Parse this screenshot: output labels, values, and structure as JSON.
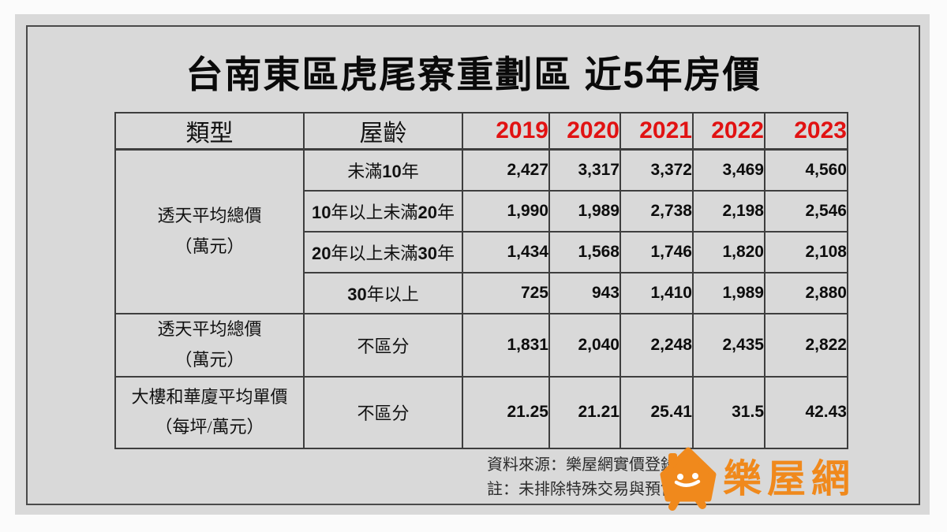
{
  "title": "台南東區虎尾寮重劃區 近5年房價",
  "table": {
    "header": {
      "type": "類型",
      "age": "屋齡",
      "years": [
        "2019",
        "2020",
        "2021",
        "2022",
        "2023"
      ]
    },
    "groups": [
      {
        "type_line1": "透天平均總價",
        "type_line2": "（萬元）",
        "rows": [
          {
            "age": "未滿10年",
            "values": [
              "2,427",
              "3,317",
              "3,372",
              "3,469",
              "4,560"
            ]
          },
          {
            "age": "10年以上未滿20年",
            "values": [
              "1,990",
              "1,989",
              "2,738",
              "2,198",
              "2,546"
            ]
          },
          {
            "age": "20年以上未滿30年",
            "values": [
              "1,434",
              "1,568",
              "1,746",
              "1,820",
              "2,108"
            ]
          },
          {
            "age": "30年以上",
            "values": [
              "725",
              "943",
              "1,410",
              "1,989",
              "2,880"
            ]
          }
        ]
      },
      {
        "type_line1": "透天平均總價",
        "type_line2": "（萬元）",
        "rows": [
          {
            "age": "不區分",
            "values": [
              "1,831",
              "2,040",
              "2,248",
              "2,435",
              "2,822"
            ]
          }
        ]
      },
      {
        "type_line1": "大樓和華廈平均單價",
        "type_line2": "（每坪/萬元）",
        "rows": [
          {
            "age": "不區分",
            "values": [
              "21.25",
              "21.21",
              "25.41",
              "31.5",
              "42.43"
            ]
          }
        ]
      }
    ]
  },
  "footer": {
    "source": "資料來源：樂屋網實價登錄",
    "note": "註：未排除特殊交易與預售",
    "logo_text": "樂屋網"
  },
  "colors": {
    "panel_gray": "#d9d9d9",
    "border_dark": "#3e3e3e",
    "year_red": "#e11212",
    "brand_orange": "#f0891c"
  },
  "chart_data": {
    "type": "table",
    "title": "台南東區虎尾寮重劃區 近5年房價",
    "columns": [
      "類型",
      "屋齡",
      "2019",
      "2020",
      "2021",
      "2022",
      "2023"
    ],
    "rows": [
      [
        "透天平均總價（萬元）",
        "未滿10年",
        2427,
        3317,
        3372,
        3469,
        4560
      ],
      [
        "透天平均總價（萬元）",
        "10年以上未滿20年",
        1990,
        1989,
        2738,
        2198,
        2546
      ],
      [
        "透天平均總價（萬元）",
        "20年以上未滿30年",
        1434,
        1568,
        1746,
        1820,
        2108
      ],
      [
        "透天平均總價（萬元）",
        "30年以上",
        725,
        943,
        1410,
        1989,
        2880
      ],
      [
        "透天平均總價（萬元）",
        "不區分",
        1831,
        2040,
        2248,
        2435,
        2822
      ],
      [
        "大樓和華廈平均單價（每坪/萬元）",
        "不區分",
        21.25,
        21.21,
        25.41,
        31.5,
        42.43
      ]
    ],
    "source_note": "資料來源：樂屋網實價登錄",
    "disclaimer": "註：未排除特殊交易與預售"
  }
}
